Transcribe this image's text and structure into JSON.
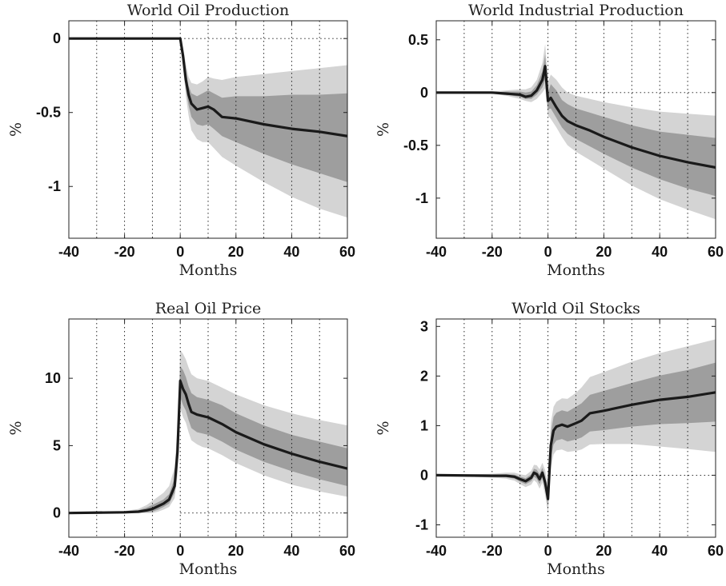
{
  "figure": {
    "colors": {
      "outer_band": "#d4d4d4",
      "inner_band": "#9e9e9e",
      "mean_line": "#1a1a1a"
    }
  },
  "chart_data": [
    {
      "type": "area",
      "title": "World Oil Production",
      "xlabel": "Months",
      "ylabel": "%",
      "xlim": [
        -40,
        60
      ],
      "ylim": [
        -1.35,
        0.12
      ],
      "xticks": [
        -40,
        -20,
        0,
        20,
        40,
        60
      ],
      "yticks": [
        0,
        -0.5,
        -1
      ],
      "ytick_labels": [
        "0",
        "-0.5",
        "-1"
      ],
      "xgrid": [
        -30,
        -20,
        -10,
        0,
        10,
        20,
        30,
        40,
        50
      ],
      "zero_line": "from x=0",
      "x": [
        -40,
        0,
        1,
        2,
        3,
        4,
        6,
        8,
        10,
        12,
        15,
        20,
        30,
        40,
        50,
        60
      ],
      "mean": [
        0,
        0,
        -0.12,
        -0.28,
        -0.38,
        -0.44,
        -0.48,
        -0.47,
        -0.46,
        -0.48,
        -0.53,
        -0.54,
        -0.58,
        -0.61,
        -0.63,
        -0.66
      ],
      "inner_band": {
        "lower": [
          0,
          0,
          -0.16,
          -0.34,
          -0.45,
          -0.53,
          -0.58,
          -0.59,
          -0.58,
          -0.61,
          -0.66,
          -0.7,
          -0.78,
          -0.85,
          -0.91,
          -0.97
        ],
        "upper": [
          0,
          0,
          -0.09,
          -0.22,
          -0.32,
          -0.37,
          -0.39,
          -0.37,
          -0.35,
          -0.37,
          -0.4,
          -0.39,
          -0.39,
          -0.38,
          -0.38,
          -0.37
        ]
      },
      "outer_band": {
        "lower": [
          0,
          0,
          -0.19,
          -0.39,
          -0.52,
          -0.62,
          -0.68,
          -0.7,
          -0.7,
          -0.74,
          -0.8,
          -0.86,
          -0.97,
          -1.07,
          -1.15,
          -1.21
        ],
        "upper": [
          0,
          0,
          -0.06,
          -0.17,
          -0.26,
          -0.3,
          -0.31,
          -0.29,
          -0.26,
          -0.27,
          -0.28,
          -0.26,
          -0.24,
          -0.22,
          -0.2,
          -0.18
        ]
      }
    },
    {
      "type": "area",
      "title": "World Industrial Production",
      "xlabel": "Months",
      "ylabel": "%",
      "xlim": [
        -40,
        60
      ],
      "ylim": [
        -1.38,
        0.68
      ],
      "xticks": [
        -40,
        -20,
        0,
        20,
        40,
        60
      ],
      "yticks": [
        0.5,
        0,
        -0.5,
        -1
      ],
      "ytick_labels": [
        "0.5",
        "0",
        "-0.5",
        "-1"
      ],
      "xgrid": [
        -30,
        -20,
        -10,
        0,
        10,
        20,
        30,
        40,
        50
      ],
      "zero_line": "from x=0",
      "x": [
        -40,
        -20,
        -15,
        -10,
        -8,
        -6,
        -4,
        -2,
        -1,
        0,
        1,
        3,
        5,
        7,
        10,
        15,
        20,
        30,
        40,
        50,
        60
      ],
      "mean": [
        0,
        0,
        -0.01,
        -0.02,
        -0.04,
        -0.03,
        0.02,
        0.12,
        0.25,
        -0.08,
        -0.05,
        -0.14,
        -0.22,
        -0.27,
        -0.31,
        -0.36,
        -0.42,
        -0.52,
        -0.6,
        -0.66,
        -0.71
      ],
      "inner_band": {
        "lower": [
          0,
          0,
          -0.02,
          -0.04,
          -0.06,
          -0.06,
          -0.02,
          0.05,
          0.12,
          -0.16,
          -0.15,
          -0.24,
          -0.33,
          -0.39,
          -0.44,
          -0.51,
          -0.58,
          -0.71,
          -0.82,
          -0.91,
          -0.98
        ],
        "upper": [
          0,
          0,
          0.01,
          0.01,
          0.0,
          0.01,
          0.07,
          0.2,
          0.36,
          0.0,
          0.08,
          0.02,
          -0.07,
          -0.11,
          -0.15,
          -0.19,
          -0.23,
          -0.31,
          -0.37,
          -0.4,
          -0.43
        ]
      },
      "outer_band": {
        "lower": [
          0,
          -0.01,
          -0.03,
          -0.06,
          -0.08,
          -0.09,
          -0.06,
          0.0,
          0.04,
          -0.22,
          -0.25,
          -0.33,
          -0.42,
          -0.5,
          -0.56,
          -0.64,
          -0.72,
          -0.88,
          -1.01,
          -1.11,
          -1.2
        ],
        "upper": [
          0,
          0.01,
          0.02,
          0.03,
          0.03,
          0.05,
          0.12,
          0.28,
          0.46,
          0.1,
          0.17,
          0.12,
          0.05,
          0.0,
          -0.03,
          -0.06,
          -0.09,
          -0.14,
          -0.18,
          -0.2,
          -0.22
        ]
      }
    },
    {
      "type": "area",
      "title": "Real Oil Price",
      "xlabel": "Months",
      "ylabel": "%",
      "xlim": [
        -40,
        60
      ],
      "ylim": [
        -1.8,
        14.4
      ],
      "xticks": [
        -40,
        -20,
        0,
        20,
        40,
        60
      ],
      "yticks": [
        10,
        5,
        0
      ],
      "ytick_labels": [
        "10",
        "5",
        "0"
      ],
      "xgrid": [
        -30,
        -20,
        -10,
        0,
        10,
        20,
        30,
        40,
        50
      ],
      "zero_line": "from x=0",
      "x": [
        -40,
        -20,
        -15,
        -12,
        -10,
        -8,
        -6,
        -4,
        -2,
        -1,
        0,
        1,
        2,
        3,
        4,
        6,
        8,
        10,
        15,
        20,
        30,
        40,
        50,
        60
      ],
      "mean": [
        0,
        0.05,
        0.1,
        0.2,
        0.3,
        0.5,
        0.7,
        1.0,
        2.0,
        4.5,
        9.8,
        9.2,
        8.8,
        8.1,
        7.5,
        7.3,
        7.2,
        7.1,
        6.6,
        6.0,
        5.1,
        4.4,
        3.8,
        3.3
      ],
      "inner_band": {
        "lower": [
          0,
          0.0,
          0.02,
          0.05,
          0.1,
          0.25,
          0.45,
          0.7,
          1.5,
          3.6,
          8.6,
          8.0,
          7.6,
          6.9,
          6.3,
          6.0,
          5.9,
          5.8,
          5.3,
          4.7,
          3.8,
          3.1,
          2.5,
          2.0
        ],
        "upper": [
          0,
          0.1,
          0.2,
          0.4,
          0.6,
          0.8,
          1.0,
          1.4,
          2.6,
          5.4,
          10.9,
          10.6,
          10.1,
          9.4,
          8.9,
          8.6,
          8.5,
          8.4,
          8.0,
          7.4,
          6.5,
          5.8,
          5.3,
          4.8
        ]
      },
      "outer_band": {
        "lower": [
          0,
          -0.02,
          -0.02,
          0.0,
          0.0,
          0.1,
          0.25,
          0.45,
          1.1,
          2.8,
          7.8,
          7.1,
          6.7,
          6.0,
          5.4,
          5.1,
          4.9,
          4.8,
          4.3,
          3.7,
          2.8,
          2.1,
          1.6,
          1.2
        ],
        "upper": [
          0,
          0.15,
          0.3,
          0.6,
          0.9,
          1.2,
          1.5,
          2.0,
          3.4,
          6.4,
          12.1,
          11.8,
          11.4,
          10.8,
          10.3,
          10.0,
          9.9,
          9.8,
          9.3,
          8.8,
          8.0,
          7.4,
          6.9,
          6.5
        ]
      }
    },
    {
      "type": "area",
      "title": "World Oil Stocks",
      "xlabel": "Months",
      "ylabel": "%",
      "xlim": [
        -40,
        60
      ],
      "ylim": [
        -1.25,
        3.15
      ],
      "xticks": [
        -40,
        -20,
        0,
        20,
        40,
        60
      ],
      "yticks": [
        3,
        2,
        1,
        0,
        -1
      ],
      "ytick_labels": [
        "3",
        "2",
        "1",
        "0",
        "-1"
      ],
      "xgrid": [
        -30,
        -20,
        -10,
        0,
        10,
        20,
        30,
        40,
        50
      ],
      "zero_line": "from x=0",
      "x": [
        -40,
        -20,
        -15,
        -12,
        -10,
        -8,
        -6,
        -5,
        -4,
        -3,
        -2,
        -1,
        0,
        1,
        2,
        3,
        5,
        7,
        10,
        12,
        15,
        20,
        30,
        40,
        50,
        60
      ],
      "mean": [
        0,
        -0.01,
        -0.01,
        -0.03,
        -0.08,
        -0.12,
        -0.05,
        0.05,
        0.02,
        -0.08,
        0.05,
        -0.15,
        -0.48,
        0.6,
        0.9,
        0.98,
        1.02,
        0.98,
        1.05,
        1.1,
        1.25,
        1.3,
        1.42,
        1.52,
        1.58,
        1.67
      ],
      "inner_band": {
        "lower": [
          0,
          -0.03,
          -0.04,
          -0.07,
          -0.13,
          -0.18,
          -0.12,
          -0.03,
          -0.07,
          -0.18,
          -0.05,
          -0.28,
          -0.62,
          0.35,
          0.62,
          0.7,
          0.73,
          0.68,
          0.72,
          0.76,
          0.88,
          0.91,
          0.98,
          1.03,
          1.05,
          1.08
        ],
        "upper": [
          0,
          0.01,
          0.02,
          0.01,
          -0.03,
          -0.06,
          0.02,
          0.13,
          0.11,
          0.02,
          0.15,
          -0.02,
          -0.34,
          0.85,
          1.18,
          1.26,
          1.31,
          1.28,
          1.38,
          1.45,
          1.62,
          1.7,
          1.86,
          2.01,
          2.12,
          2.27
        ]
      },
      "outer_band": {
        "lower": [
          0,
          -0.05,
          -0.07,
          -0.11,
          -0.18,
          -0.24,
          -0.19,
          -0.1,
          -0.15,
          -0.27,
          -0.15,
          -0.4,
          -0.78,
          0.15,
          0.42,
          0.5,
          0.52,
          0.47,
          0.49,
          0.52,
          0.62,
          0.63,
          0.63,
          0.58,
          0.53,
          0.47
        ],
        "upper": [
          0,
          0.03,
          0.05,
          0.05,
          0.02,
          0.0,
          0.09,
          0.21,
          0.2,
          0.12,
          0.25,
          0.1,
          -0.18,
          1.05,
          1.38,
          1.48,
          1.55,
          1.54,
          1.66,
          1.77,
          1.98,
          2.08,
          2.29,
          2.46,
          2.6,
          2.74
        ]
      }
    }
  ]
}
